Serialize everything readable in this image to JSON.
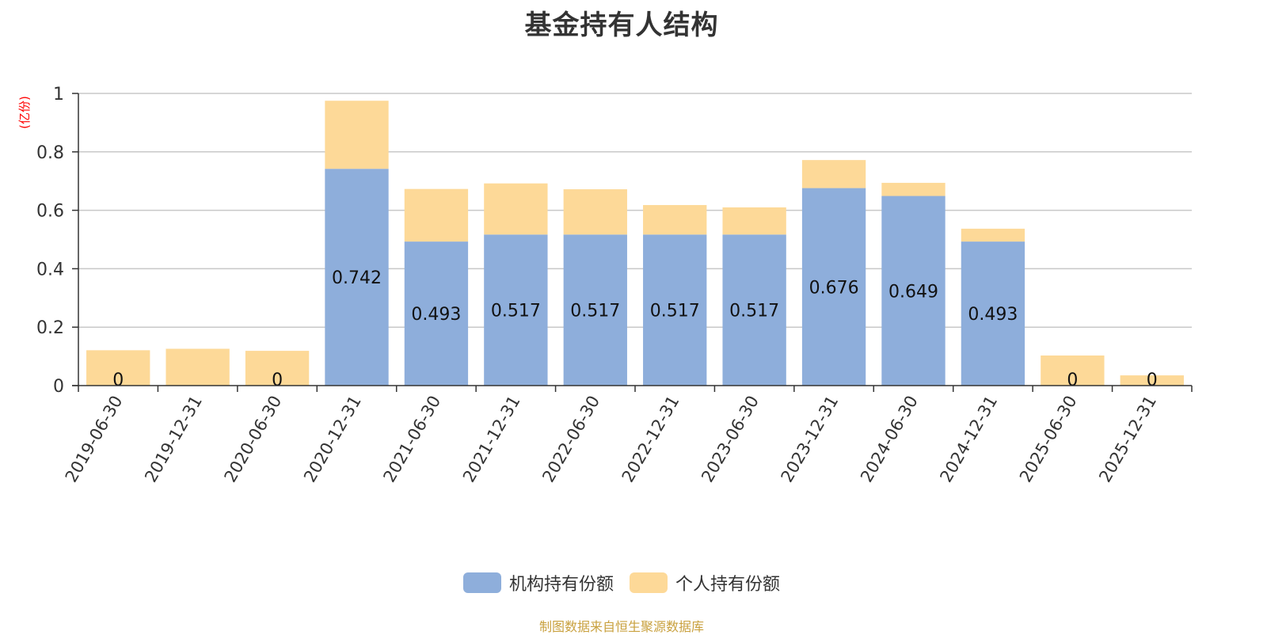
{
  "chart_data": {
    "type": "bar",
    "stacked": true,
    "title": "基金持有人结构",
    "ylabel": "(亿份)",
    "xlabel": "",
    "ylim": [
      0,
      1
    ],
    "yticks": [
      "0",
      "0.2",
      "0.4",
      "0.6",
      "0.8",
      "1"
    ],
    "ytick_values": [
      0,
      0.2,
      0.4,
      0.6,
      0.8,
      1
    ],
    "grid": true,
    "legend_position": "bottom-center",
    "categories": [
      "2019-06-30",
      "2019-12-31",
      "2020-06-30",
      "2020-12-31",
      "2021-06-30",
      "2021-12-31",
      "2022-06-30",
      "2022-12-31",
      "2023-06-30",
      "2023-12-31",
      "2024-06-30",
      "2024-12-31",
      "2025-06-30",
      "2025-12-31"
    ],
    "series": [
      {
        "name": "机构持有份额",
        "color": "#8eaedb",
        "values": [
          0,
          0,
          0,
          0.742,
          0.493,
          0.517,
          0.517,
          0.517,
          0.517,
          0.676,
          0.649,
          0.493,
          0,
          0
        ],
        "labels": [
          "0",
          "",
          "0",
          "0.742",
          "0.493",
          "0.517",
          "0.517",
          "0.517",
          "0.517",
          "0.676",
          "0.649",
          "0.493",
          "0",
          "0"
        ]
      },
      {
        "name": "个人持有份额",
        "color": "#fdd998",
        "values": [
          0.121,
          0.126,
          0.119,
          0.233,
          0.18,
          0.175,
          0.155,
          0.101,
          0.093,
          0.096,
          0.045,
          0.044,
          0.103,
          0.035
        ],
        "labels": []
      }
    ],
    "source": "制图数据来自恒生聚源数据库"
  },
  "colors": {
    "axis": "#333333",
    "grid": "#c8c8c8",
    "ylabel": "#ff0000",
    "source": "#c9a13f",
    "bar_label": "#111111"
  }
}
